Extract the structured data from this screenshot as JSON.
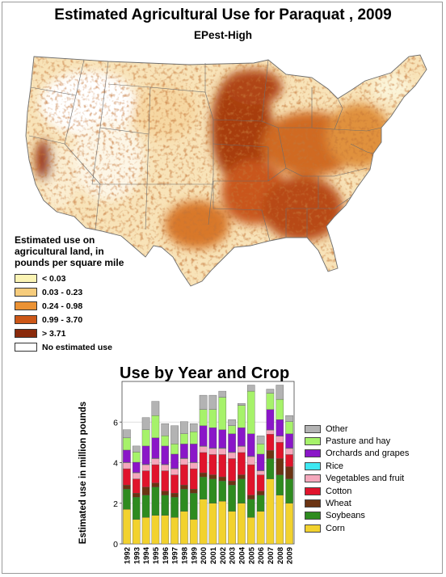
{
  "title": "Estimated Agricultural Use for Paraquat , 2009",
  "subtitle": "EPest-High",
  "map_legend": {
    "title_lines": [
      "Estimated use on",
      "agricultural land, in",
      "pounds per square mile"
    ],
    "items": [
      {
        "label": "< 0.03",
        "color": "#fbf4b4"
      },
      {
        "label": "0.03 - 0.23",
        "color": "#f6cc7c"
      },
      {
        "label": "0.24 - 0.98",
        "color": "#eb9234"
      },
      {
        "label": "0.99 - 3.70",
        "color": "#cc5717"
      },
      {
        "label": "> 3.71",
        "color": "#8a2a0b"
      },
      {
        "label": "No estimated use",
        "color": "#ffffff"
      }
    ]
  },
  "chart_title": "Use by Year and Crop",
  "chart_data": {
    "type": "bar",
    "stacked": true,
    "title": "Use by Year and Crop",
    "ylabel": "Estimated use in million pounds",
    "xlabel": "",
    "ylim": [
      0,
      8
    ],
    "yticks": [
      0,
      2,
      4,
      6
    ],
    "categories": [
      "1992",
      "1993",
      "1994",
      "1995",
      "1996",
      "1997",
      "1998",
      "1999",
      "2000",
      "2001",
      "2002",
      "2003",
      "2004",
      "2005",
      "2006",
      "2007",
      "2008",
      "2009"
    ],
    "series": [
      {
        "name": "Corn",
        "color": "#f2d22e",
        "values": [
          1.7,
          1.2,
          1.3,
          1.4,
          1.4,
          1.3,
          1.6,
          1.2,
          2.2,
          2.0,
          2.1,
          1.6,
          2.0,
          1.3,
          1.6,
          3.2,
          2.4,
          2.0
        ]
      },
      {
        "name": "Soybeans",
        "color": "#2e8b1f",
        "values": [
          1.0,
          1.1,
          1.1,
          1.4,
          1.0,
          1.0,
          1.1,
          1.3,
          1.1,
          1.2,
          1.0,
          1.3,
          1.2,
          0.9,
          0.8,
          1.0,
          1.0,
          1.2
        ]
      },
      {
        "name": "Wheat",
        "color": "#6b3413",
        "values": [
          0.2,
          0.2,
          0.4,
          0.2,
          0.2,
          0.2,
          0.2,
          0.2,
          0.2,
          0.2,
          0.2,
          0.2,
          0.2,
          0.2,
          0.2,
          0.4,
          0.8,
          0.6
        ]
      },
      {
        "name": "Cotton",
        "color": "#e0142c",
        "values": [
          0.8,
          0.7,
          0.8,
          0.9,
          1.0,
          0.9,
          1.0,
          1.0,
          1.0,
          1.0,
          1.1,
          1.1,
          1.1,
          1.5,
          0.8,
          0.8,
          0.8,
          0.6
        ]
      },
      {
        "name": "Vegetables and fruit",
        "color": "#f5a8bc",
        "values": [
          0.3,
          0.3,
          0.3,
          0.3,
          0.3,
          0.3,
          0.3,
          0.3,
          0.3,
          0.3,
          0.3,
          0.3,
          0.3,
          0.4,
          0.2,
          0.2,
          0.3,
          0.3
        ]
      },
      {
        "name": "Rice",
        "color": "#3ee8f2",
        "values": [
          0.02,
          0.02,
          0.02,
          0.02,
          0.02,
          0.02,
          0.02,
          0.02,
          0.02,
          0.02,
          0.02,
          0.02,
          0.02,
          0.02,
          0.02,
          0.02,
          0.02,
          0.02
        ]
      },
      {
        "name": "Orchards and grapes",
        "color": "#8a16c8",
        "values": [
          0.6,
          0.5,
          0.9,
          1.0,
          0.9,
          0.7,
          0.7,
          0.9,
          1.0,
          1.0,
          0.9,
          0.9,
          0.9,
          1.1,
          0.8,
          1.0,
          0.8,
          0.7
        ]
      },
      {
        "name": "Pasture and hay",
        "color": "#a6f26a",
        "values": [
          0.6,
          0.5,
          0.8,
          1.1,
          0.5,
          0.5,
          0.5,
          0.6,
          0.8,
          0.9,
          1.6,
          0.4,
          1.1,
          2.1,
          0.5,
          0.8,
          1.0,
          0.6
        ]
      },
      {
        "name": "Other",
        "color": "#b3b3b3",
        "values": [
          0.4,
          0.3,
          0.6,
          0.7,
          0.6,
          0.9,
          0.6,
          0.4,
          0.7,
          0.7,
          0.3,
          0.3,
          0.1,
          0.3,
          0.4,
          0.2,
          0.7,
          0.3
        ]
      }
    ]
  }
}
